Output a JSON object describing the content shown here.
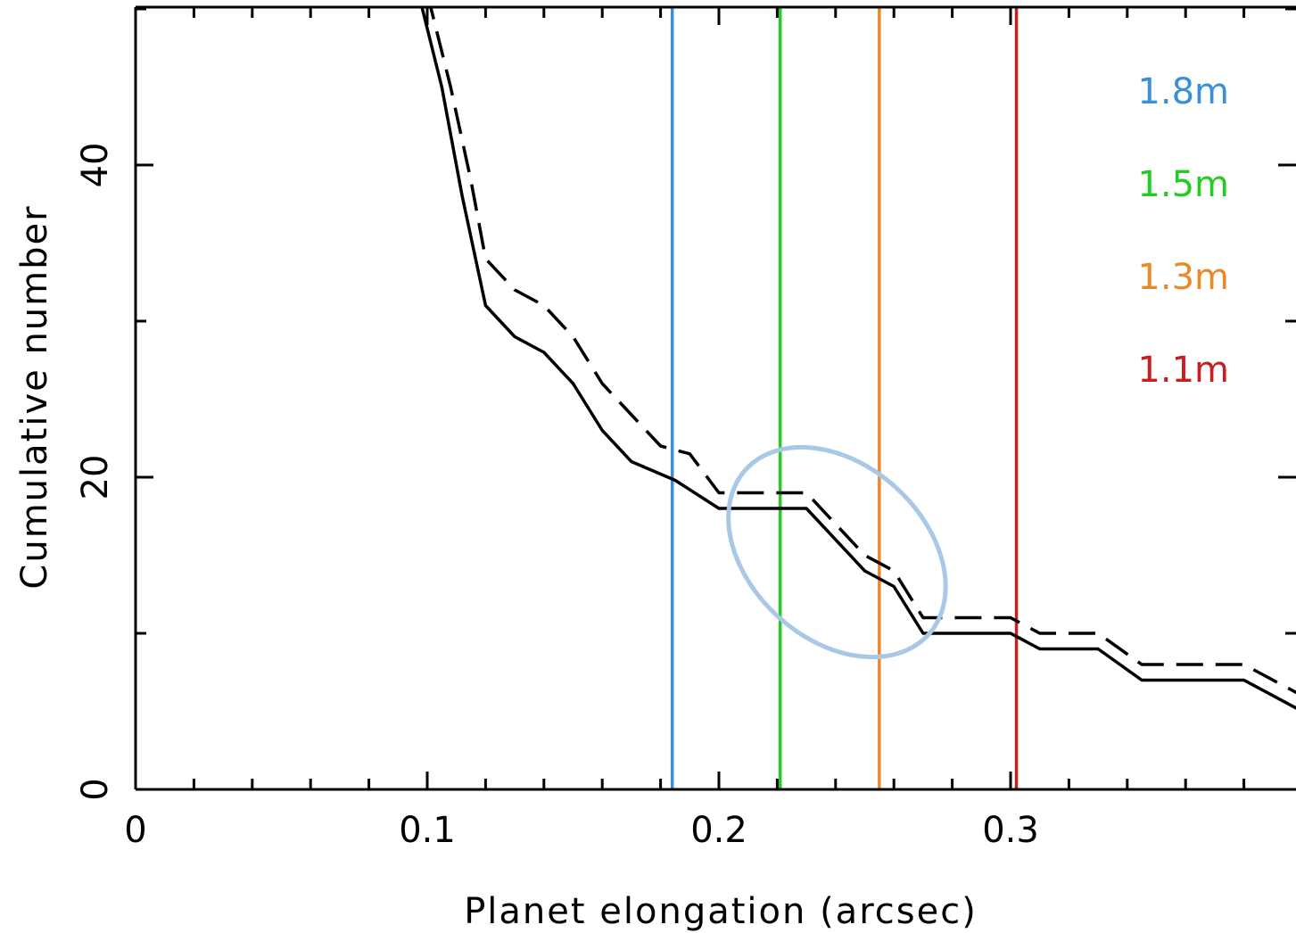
{
  "chart_data": {
    "type": "line",
    "xlabel": "Planet elongation (arcsec)",
    "ylabel": "Cumulative number",
    "xlim": [
      0,
      0.4
    ],
    "ylim": [
      0,
      50
    ],
    "x_ticks": [
      {
        "value": 0,
        "label": "0"
      },
      {
        "value": 0.1,
        "label": "0.1"
      },
      {
        "value": 0.2,
        "label": "0.2"
      },
      {
        "value": 0.3,
        "label": "0.3"
      }
    ],
    "y_ticks": [
      {
        "value": 0,
        "label": "0"
      },
      {
        "value": 20,
        "label": "20"
      },
      {
        "value": 40,
        "label": "40"
      }
    ],
    "grid": false,
    "series": [
      {
        "style": "solid",
        "color": "#000000",
        "points": [
          [
            0.097,
            51
          ],
          [
            0.105,
            45
          ],
          [
            0.112,
            38
          ],
          [
            0.12,
            31
          ],
          [
            0.13,
            29
          ],
          [
            0.14,
            28
          ],
          [
            0.15,
            26
          ],
          [
            0.16,
            23
          ],
          [
            0.17,
            21
          ],
          [
            0.185,
            19.8
          ],
          [
            0.2,
            18
          ],
          [
            0.23,
            18
          ],
          [
            0.25,
            14
          ],
          [
            0.26,
            13
          ],
          [
            0.27,
            10
          ],
          [
            0.3,
            10
          ],
          [
            0.31,
            9
          ],
          [
            0.33,
            9
          ],
          [
            0.345,
            7
          ],
          [
            0.38,
            7
          ],
          [
            0.4,
            5
          ]
        ]
      },
      {
        "style": "dashed",
        "color": "#000000",
        "points": [
          [
            0.1,
            51
          ],
          [
            0.108,
            45
          ],
          [
            0.115,
            39
          ],
          [
            0.12,
            34
          ],
          [
            0.13,
            32
          ],
          [
            0.14,
            31
          ],
          [
            0.15,
            29
          ],
          [
            0.16,
            26
          ],
          [
            0.17,
            24
          ],
          [
            0.18,
            22
          ],
          [
            0.19,
            21.5
          ],
          [
            0.2,
            19
          ],
          [
            0.23,
            19
          ],
          [
            0.25,
            15
          ],
          [
            0.26,
            14
          ],
          [
            0.27,
            11
          ],
          [
            0.3,
            11
          ],
          [
            0.31,
            10
          ],
          [
            0.33,
            10
          ],
          [
            0.345,
            8
          ],
          [
            0.38,
            8
          ],
          [
            0.4,
            6
          ]
        ]
      }
    ],
    "vlines": [
      {
        "x": 0.184,
        "color": "#3a8fd6",
        "label": "1.8m"
      },
      {
        "x": 0.221,
        "color": "#22cc22",
        "label": "1.5m"
      },
      {
        "x": 0.255,
        "color": "#e8892a",
        "label": "1.3m"
      },
      {
        "x": 0.302,
        "color": "#c81e1e",
        "label": "1.1m"
      }
    ],
    "highlight_ellipse": {
      "cx": 0.2405,
      "cy": 15.2,
      "color": "#a9c8e8"
    }
  }
}
